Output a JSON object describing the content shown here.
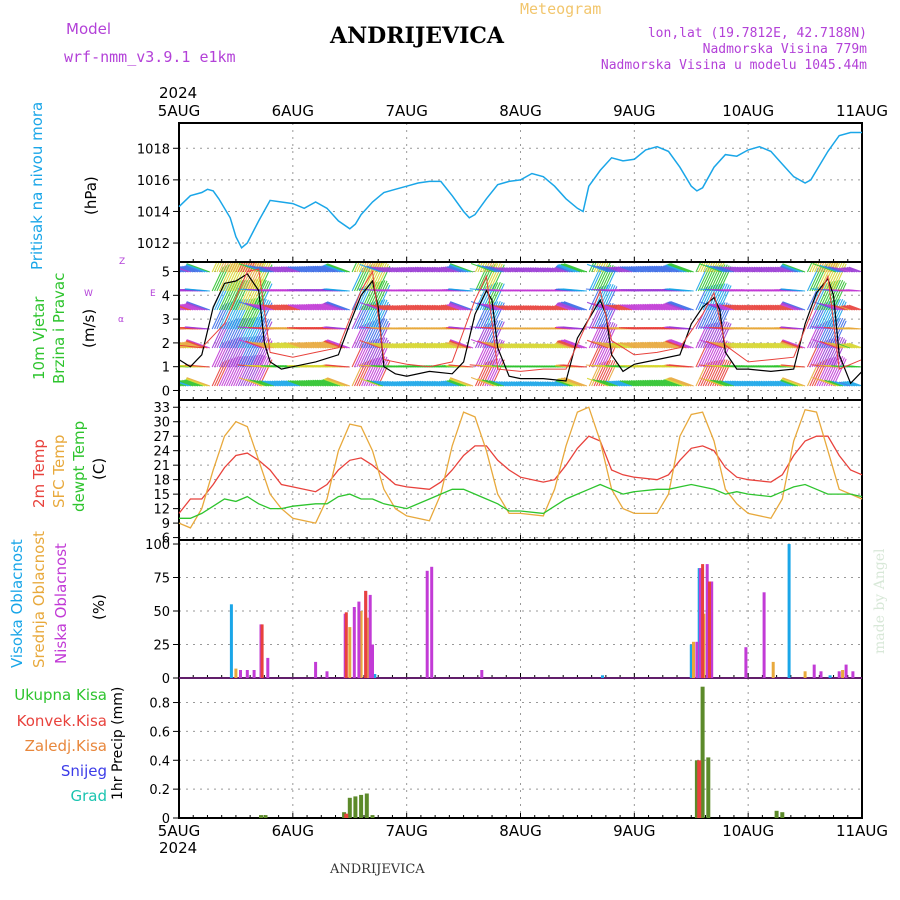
{
  "header": {
    "model_label": "Model",
    "model_name": "wrf-nmm_v3.9.1 e1km",
    "station": "ANDRIJEVICA",
    "meteogram_label": "Meteogram",
    "lonlat": "lon,lat (19.7812E, 42.7188N)",
    "altitude": "Nadmorska Visina 779m",
    "model_altitude": "Nadmorska Visina u modelu 1045.44m",
    "year_top": "2024",
    "year_bottom": "2024",
    "footer_station": "ANDRIJEVICA",
    "watermark": "made by Angel"
  },
  "day_labels": [
    "5AUG",
    "6AUG",
    "7AUG",
    "8AUG",
    "9AUG",
    "10AUG",
    "11AUG"
  ],
  "panel_labels": {
    "pressure": {
      "name": "Pritisak na nivou mora",
      "unit": "(hPa)"
    },
    "wind": {
      "name1": "10m Vjetar",
      "name2": "Brzina i Pravac",
      "unit": "(m/s)",
      "compass": "Z",
      "compass_west": "W",
      "compass_east": "E",
      "compass_sw": "α"
    },
    "temp": {
      "t2m": "2m Temp",
      "sfc": "SFC Temp",
      "dew": "dewpt Temp",
      "unit": "(C)"
    },
    "cloud": {
      "high": "Visoka Oblacnost",
      "mid": "Srednja Oblacnost",
      "low": "Niska Oblacnost",
      "unit": "(%)"
    },
    "precip": {
      "total": "Ukupna Kisa",
      "conv": "Konvek.Kisa",
      "frozen": "Zaledj.Kisa",
      "snow": "Snijeg",
      "hail": "Grad",
      "unit": "1hr Precip (mm)"
    }
  },
  "colors": {
    "pressure": "#1aa6e8",
    "t2m": "#e8423c",
    "sfc": "#e8a93c",
    "dew": "#2ec42e",
    "cloud_high": "#1aa6e8",
    "cloud_mid": "#e8a93c",
    "cloud_low": "#c23bd6",
    "precip_total": "#5c8a2a",
    "precip_conv": "#e8423c",
    "wind_speed": "#000000",
    "wind_gust": "#e8423c"
  },
  "chart_data": [
    {
      "type": "line",
      "name": "pressure",
      "x_unit": "days from 5AUG 00",
      "ylim": [
        1010.8,
        1019.6
      ],
      "yticks": [
        1012,
        1014,
        1016,
        1018
      ],
      "series": [
        {
          "color": "#1aa6e8",
          "x": [
            0,
            0.1,
            0.2,
            0.25,
            0.3,
            0.35,
            0.45,
            0.5,
            0.55,
            0.6,
            0.7,
            0.8,
            0.9,
            1.0,
            1.1,
            1.2,
            1.3,
            1.4,
            1.5,
            1.55,
            1.6,
            1.7,
            1.8,
            1.9,
            2.0,
            2.1,
            2.2,
            2.3,
            2.4,
            2.5,
            2.55,
            2.6,
            2.7,
            2.8,
            2.9,
            3.0,
            3.1,
            3.2,
            3.3,
            3.4,
            3.5,
            3.55,
            3.6,
            3.7,
            3.8,
            3.9,
            4.0,
            4.1,
            4.2,
            4.3,
            4.4,
            4.5,
            4.55,
            4.6,
            4.7,
            4.8,
            4.9,
            5.0,
            5.1,
            5.2,
            5.3,
            5.4,
            5.5,
            5.55,
            5.6,
            5.7,
            5.8,
            5.9,
            6.0
          ],
          "y": [
            1014.3,
            1015.0,
            1015.2,
            1015.4,
            1015.3,
            1014.8,
            1013.6,
            1012.4,
            1011.7,
            1012.0,
            1013.4,
            1014.7,
            1014.6,
            1014.5,
            1014.2,
            1014.6,
            1014.2,
            1013.4,
            1012.9,
            1013.2,
            1013.8,
            1014.6,
            1015.2,
            1015.4,
            1015.6,
            1015.8,
            1015.9,
            1015.9,
            1015.0,
            1014.0,
            1013.6,
            1013.8,
            1014.8,
            1015.7,
            1015.9,
            1016.0,
            1016.4,
            1016.2,
            1015.6,
            1014.8,
            1014.2,
            1014.0,
            1015.6,
            1016.6,
            1017.4,
            1017.2,
            1017.3,
            1017.9,
            1018.1,
            1017.8,
            1016.8,
            1015.6,
            1015.3,
            1015.5,
            1016.8,
            1017.6,
            1017.5,
            1017.9,
            1018.1,
            1017.8,
            1017.0,
            1016.2,
            1015.8,
            1016.0,
            1016.6,
            1017.8,
            1018.8,
            1019.0,
            1019.0
          ]
        }
      ]
    },
    {
      "type": "line",
      "name": "wind",
      "x_unit": "days from 5AUG 00",
      "ylim": [
        -0.4,
        5.4
      ],
      "yticks": [
        0,
        1,
        2,
        3,
        4,
        5
      ],
      "series": [
        {
          "name": "speed",
          "color": "#000000",
          "x": [
            0,
            0.1,
            0.2,
            0.3,
            0.4,
            0.5,
            0.6,
            0.7,
            0.75,
            0.8,
            0.9,
            1.0,
            1.2,
            1.4,
            1.5,
            1.6,
            1.7,
            1.75,
            1.8,
            1.9,
            2.0,
            2.2,
            2.4,
            2.5,
            2.6,
            2.7,
            2.75,
            2.8,
            2.9,
            3.0,
            3.2,
            3.4,
            3.5,
            3.6,
            3.7,
            3.75,
            3.8,
            3.9,
            4.0,
            4.2,
            4.4,
            4.5,
            4.6,
            4.7,
            4.75,
            4.8,
            4.9,
            5.0,
            5.2,
            5.4,
            5.5,
            5.6,
            5.7,
            5.75,
            5.8,
            5.9,
            6.0
          ],
          "y": [
            1.3,
            1.0,
            1.5,
            3.5,
            4.5,
            4.6,
            4.9,
            4.2,
            2.0,
            1.2,
            0.9,
            1.0,
            1.2,
            1.5,
            2.8,
            4.0,
            4.6,
            3.5,
            1.0,
            0.7,
            0.6,
            0.8,
            0.7,
            1.2,
            3.2,
            4.2,
            3.8,
            1.8,
            0.6,
            0.5,
            0.5,
            0.4,
            2.2,
            3.0,
            3.8,
            3.2,
            1.5,
            0.8,
            1.1,
            1.3,
            1.5,
            2.8,
            3.5,
            3.9,
            3.4,
            1.6,
            0.9,
            0.9,
            0.8,
            0.9,
            2.8,
            4.1,
            4.7,
            4.0,
            1.5,
            0.3,
            0.8
          ]
        },
        {
          "name": "gust",
          "color": "#e8423c",
          "x": [
            0,
            0.2,
            0.4,
            0.6,
            0.7,
            0.8,
            1.0,
            1.2,
            1.4,
            1.6,
            1.7,
            1.8,
            2.0,
            2.2,
            2.4,
            2.6,
            2.7,
            2.8,
            3.0,
            3.2,
            3.4,
            3.6,
            3.7,
            3.8,
            4.0,
            4.2,
            4.4,
            4.6,
            4.7,
            4.8,
            5.0,
            5.2,
            5.4,
            5.6,
            5.7,
            5.8,
            6.0
          ],
          "y": [
            1.9,
            1.8,
            2.8,
            5.0,
            5.1,
            1.6,
            1.4,
            1.6,
            1.8,
            4.2,
            5.0,
            1.3,
            1.1,
            1.0,
            1.2,
            3.8,
            4.8,
            0.9,
            0.8,
            0.9,
            0.9,
            3.0,
            4.2,
            2.1,
            1.5,
            1.6,
            1.8,
            3.2,
            4.1,
            1.9,
            1.2,
            1.3,
            1.4,
            3.8,
            4.8,
            0.9,
            1.3
          ]
        }
      ]
    },
    {
      "type": "line",
      "name": "temperature",
      "x_unit": "days from 5AUG 00",
      "ylim": [
        5.5,
        34.5
      ],
      "yticks": [
        6,
        9,
        12,
        15,
        18,
        21,
        24,
        27,
        30,
        33
      ],
      "series": [
        {
          "name": "2m Temp",
          "color": "#e8423c",
          "x": [
            0,
            0.1,
            0.2,
            0.3,
            0.4,
            0.5,
            0.6,
            0.7,
            0.8,
            0.9,
            1.0,
            1.2,
            1.3,
            1.4,
            1.5,
            1.6,
            1.7,
            1.8,
            1.9,
            2.0,
            2.2,
            2.3,
            2.4,
            2.5,
            2.6,
            2.7,
            2.8,
            2.9,
            3.0,
            3.2,
            3.3,
            3.4,
            3.5,
            3.6,
            3.7,
            3.8,
            3.9,
            4.0,
            4.2,
            4.3,
            4.4,
            4.5,
            4.6,
            4.7,
            4.8,
            4.9,
            5.0,
            5.2,
            5.3,
            5.4,
            5.5,
            5.6,
            5.7,
            5.8,
            5.9,
            6.0
          ],
          "y": [
            11,
            14,
            14,
            17,
            20.5,
            23,
            23.5,
            22,
            20,
            17,
            16.5,
            15.5,
            17,
            20,
            22,
            22.5,
            21,
            19,
            17,
            16.5,
            16,
            17.5,
            20,
            23,
            25,
            25,
            22,
            20,
            18.5,
            17.5,
            18,
            21,
            24.5,
            27,
            26,
            20,
            19,
            18.5,
            18,
            19,
            22,
            24.5,
            25,
            24,
            20.5,
            18.5,
            18,
            17.5,
            19,
            23,
            26,
            27,
            27,
            23,
            20,
            19
          ]
        },
        {
          "name": "SFC Temp",
          "color": "#e8a93c",
          "x": [
            0,
            0.1,
            0.2,
            0.3,
            0.4,
            0.5,
            0.6,
            0.7,
            0.8,
            0.9,
            1.0,
            1.2,
            1.3,
            1.4,
            1.5,
            1.6,
            1.7,
            1.8,
            1.9,
            2.0,
            2.2,
            2.3,
            2.4,
            2.5,
            2.6,
            2.7,
            2.8,
            2.9,
            3.0,
            3.2,
            3.3,
            3.4,
            3.5,
            3.6,
            3.7,
            3.8,
            3.9,
            4.0,
            4.2,
            4.3,
            4.4,
            4.5,
            4.6,
            4.7,
            4.8,
            4.9,
            5.0,
            5.2,
            5.3,
            5.4,
            5.5,
            5.6,
            5.7,
            5.8,
            5.9,
            6.0
          ],
          "y": [
            9,
            8,
            12,
            20,
            27,
            30,
            29,
            22,
            15,
            12,
            10,
            9,
            14,
            24,
            29.5,
            29,
            24,
            16,
            12,
            10.5,
            9.5,
            15,
            25,
            32,
            31,
            24,
            15,
            11,
            11,
            10.5,
            16,
            25,
            32,
            33,
            26,
            16,
            12,
            11,
            11,
            15,
            27,
            31.5,
            32,
            26,
            16,
            13,
            11,
            10,
            14,
            26,
            32.5,
            32,
            24,
            16,
            15,
            14
          ]
        },
        {
          "name": "dewpt Temp",
          "color": "#2ec42e",
          "x": [
            0,
            0.1,
            0.2,
            0.3,
            0.4,
            0.5,
            0.6,
            0.7,
            0.8,
            0.9,
            1.0,
            1.2,
            1.3,
            1.4,
            1.5,
            1.6,
            1.7,
            1.8,
            1.9,
            2.0,
            2.2,
            2.3,
            2.4,
            2.5,
            2.6,
            2.7,
            2.8,
            2.9,
            3.0,
            3.2,
            3.3,
            3.4,
            3.5,
            3.6,
            3.7,
            3.8,
            3.9,
            4.0,
            4.2,
            4.3,
            4.4,
            4.5,
            4.6,
            4.7,
            4.8,
            4.9,
            5.0,
            5.2,
            5.3,
            5.4,
            5.5,
            5.6,
            5.7,
            5.8,
            5.9,
            6.0
          ],
          "y": [
            10,
            10,
            11,
            12.5,
            14,
            13.5,
            14.5,
            13,
            12,
            12,
            12.5,
            13,
            13,
            14.5,
            15,
            14,
            14,
            13,
            12.5,
            12,
            14,
            15,
            16,
            16,
            15,
            14,
            13,
            11.5,
            11.5,
            11,
            12.5,
            14,
            15,
            16,
            17,
            16,
            15,
            15.5,
            16,
            16,
            16.5,
            17,
            16.5,
            16,
            15,
            15.5,
            15,
            14.5,
            15.5,
            16.5,
            17,
            16,
            15,
            15,
            15,
            14.5
          ]
        }
      ]
    },
    {
      "type": "bar",
      "name": "cloud_cover",
      "x_unit": "days from 5AUG 00",
      "ylim": [
        0,
        103
      ],
      "yticks": [
        0,
        25,
        50,
        75,
        100
      ],
      "series": [
        {
          "name": "Visoka Oblacnost",
          "color": "#1aa6e8",
          "x": [
            0.46,
            1.72,
            3.72,
            4.5,
            4.57,
            4.66,
            5.36,
            5.72
          ],
          "y": [
            55,
            3,
            2,
            25,
            82,
            12,
            100,
            2
          ]
        },
        {
          "name": "Srednja Oblacnost",
          "color": "#e8a93c",
          "x": [
            0.5,
            1.5,
            1.6,
            1.66,
            4.52,
            4.61,
            5.22,
            5.5,
            5.83
          ],
          "y": [
            7,
            38,
            50,
            45,
            27,
            48,
            12,
            5,
            6
          ]
        },
        {
          "name": "Niska Oblacnost",
          "color": "#c23bd6",
          "x": [
            0.54,
            0.6,
            0.66,
            0.72,
            0.78,
            1.2,
            1.3,
            1.46,
            1.54,
            1.58,
            1.64,
            1.68,
            1.7,
            2.18,
            2.22,
            2.66,
            4.55,
            4.58,
            4.64,
            4.68,
            4.98,
            5.14,
            5.58,
            5.64,
            5.92,
            5.8,
            5.86
          ],
          "y": [
            6,
            6,
            6,
            40,
            15,
            12,
            5,
            48,
            53,
            57,
            65,
            62,
            25,
            80,
            83,
            6,
            27,
            82,
            85,
            72,
            23,
            64,
            10,
            5,
            5,
            5,
            10
          ]
        },
        {
          "name": "Niska red",
          "color": "#e8423c",
          "x": [
            0.73,
            1.47,
            1.64,
            4.6,
            4.66
          ],
          "y": [
            40,
            49,
            65,
            85,
            72
          ]
        }
      ]
    },
    {
      "type": "bar",
      "name": "precipitation",
      "x_unit": "days from 5AUG 00",
      "ylim": [
        0,
        0.97
      ],
      "yticks": [
        0,
        0.2,
        0.4,
        0.6,
        0.8
      ],
      "series": [
        {
          "name": "Ukupna Kisa",
          "color": "#5c8a2a",
          "x": [
            0.72,
            0.76,
            1.45,
            1.5,
            1.55,
            1.6,
            1.65,
            1.7,
            4.55,
            4.6,
            4.65,
            5.25,
            5.3
          ],
          "y": [
            0.02,
            0.02,
            0.04,
            0.14,
            0.15,
            0.16,
            0.17,
            0.02,
            0.4,
            0.91,
            0.42,
            0.05,
            0.04
          ]
        },
        {
          "name": "Konvek.Kisa",
          "color": "#e8423c",
          "x": [
            1.47,
            4.57
          ],
          "y": [
            0.03,
            0.4
          ]
        }
      ]
    }
  ]
}
